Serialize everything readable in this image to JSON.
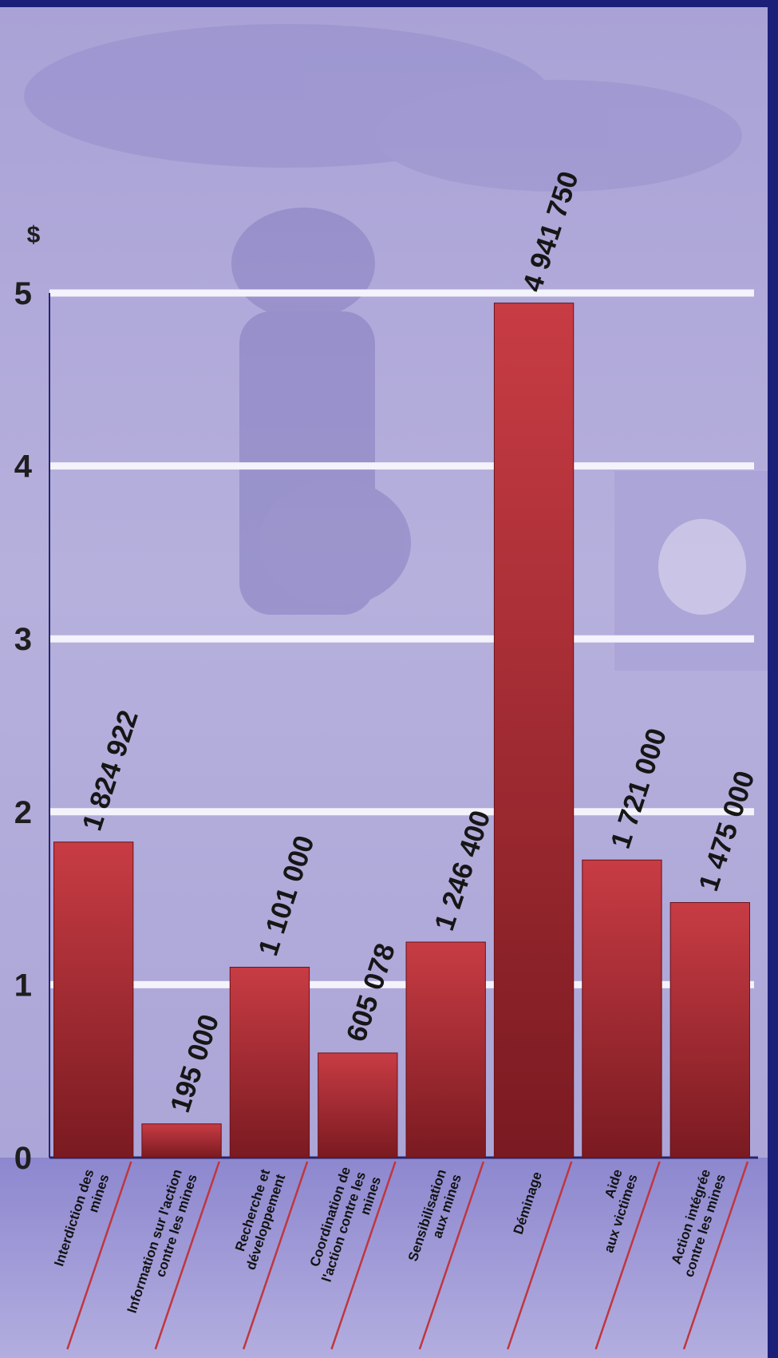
{
  "chart_data": {
    "type": "bar",
    "title": "",
    "xlabel": "",
    "ylabel": "",
    "unit_label": "$",
    "y_ticks": [
      "0",
      "1",
      "2",
      "3",
      "4",
      "5"
    ],
    "ylim": [
      0,
      5000000
    ],
    "grid": true,
    "categories": [
      [
        "Interdiction des",
        "mines"
      ],
      [
        "Information sur l'action",
        "contre les mines"
      ],
      [
        "Recherche et",
        "développement"
      ],
      [
        "Coordination de",
        "l'action contre les",
        "mines"
      ],
      [
        "Sensibilisation",
        "aux mines"
      ],
      [
        "Déminage"
      ],
      [
        "Aide",
        "aux victimes"
      ],
      [
        "Action intégrée",
        "contre les mines"
      ]
    ],
    "values": [
      1824922,
      195000,
      1101000,
      605078,
      1246400,
      4941750,
      1721000,
      1475000
    ],
    "data_labels": [
      "1 824 922",
      "195 000",
      "1 101 000",
      "605 078",
      "1 246 400",
      "4 941 750",
      "1 721 000",
      "1 475 000"
    ],
    "colors": {
      "bar_top": "#c63b42",
      "bar_bottom": "#7d1b22",
      "background": "#b4aedb",
      "grid": "#f4f2fb",
      "axis": "#27266e",
      "band": "#8e88cf",
      "divider": "#c0363e",
      "frame": "#1c1f78"
    }
  }
}
